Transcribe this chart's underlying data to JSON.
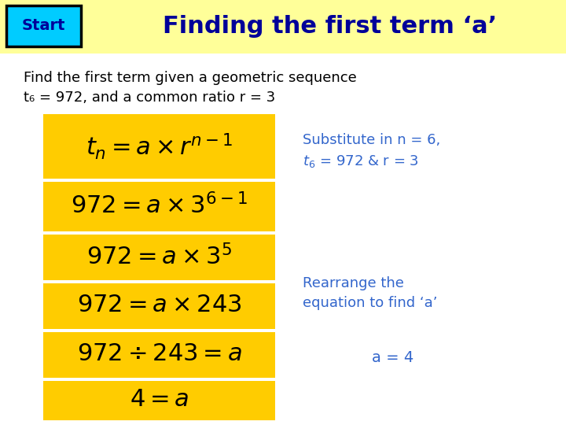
{
  "bg_color": "#ffffff",
  "header_bg": "#ffff99",
  "header_text": "Finding the first term ‘a’",
  "header_color": "#000099",
  "start_box_bg": "#00ccff",
  "start_box_border": "#000000",
  "start_text": "Start",
  "start_text_color": "#000099",
  "subtitle_line1": "Find the first term given a geometric sequence",
  "subtitle_line2": "t₆ = 972, and a common ratio r = 3",
  "subtitle_color": "#000000",
  "yellow_bg": "#ffcc00",
  "formula_color": "#000000",
  "annotation_color": "#3366cc",
  "ann1_line1": "Substitute in n = 6,",
  "ann1_line2": "$t_6$ = 972 & r = 3",
  "ann2_line1": "Rearrange the",
  "ann2_line2": "equation to find ‘a’",
  "ann3": "a = 4"
}
